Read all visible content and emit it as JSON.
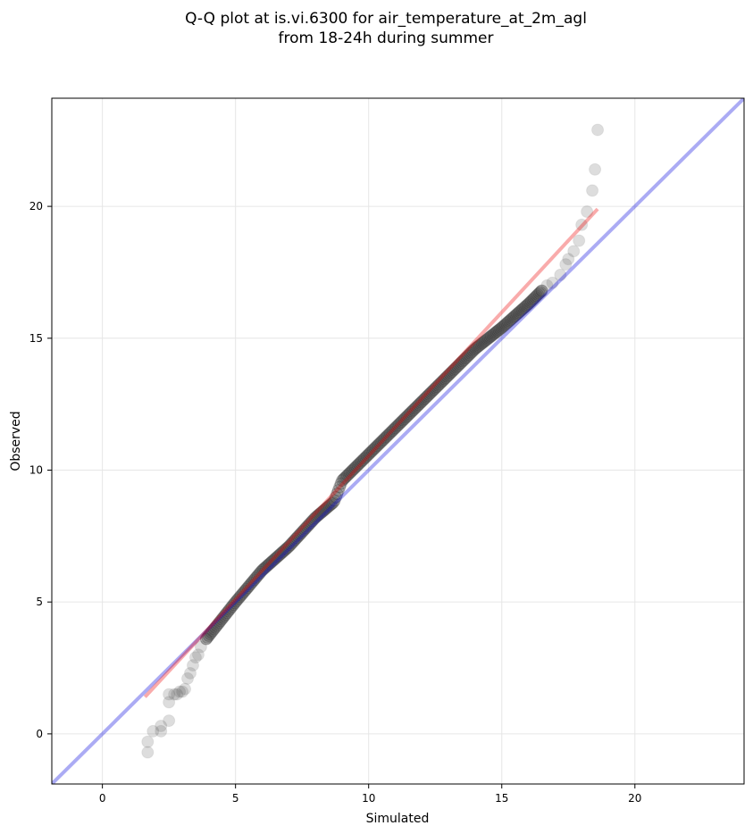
{
  "chart_data": {
    "type": "scatter",
    "title_line1": "Q-Q plot at is.vi.6300 for air_temperature_at_2m_agl",
    "title_line2": "from 18-24h during summer",
    "xlabel": "Simulated",
    "ylabel": "Observed",
    "xlim": [
      -1.9,
      24.1
    ],
    "ylim": [
      -1.9,
      24.1
    ],
    "xticks": [
      0,
      5,
      10,
      15,
      20
    ],
    "yticks": [
      0,
      5,
      10,
      15,
      20
    ],
    "grid": true,
    "identity_line": {
      "color": "#0000dd",
      "opacity": 0.33
    },
    "fit_line": {
      "color": "#ee0000",
      "opacity": 0.33,
      "x": [
        1.6,
        18.6
      ],
      "y": [
        1.4,
        19.9
      ]
    },
    "point_color": "#444444",
    "tails": {
      "x": [
        1.7,
        1.7,
        1.9,
        2.2,
        2.2,
        2.5,
        2.5,
        2.5,
        2.7,
        2.8,
        2.9,
        3.0,
        3.1,
        3.2,
        3.3,
        3.4,
        3.5,
        3.6,
        3.7,
        3.9,
        16.5,
        16.7,
        16.9,
        17.2,
        17.4,
        17.5,
        17.7,
        17.9,
        18.0,
        18.2,
        18.4,
        18.5,
        18.6
      ],
      "y": [
        -0.7,
        -0.3,
        0.1,
        0.1,
        0.3,
        0.5,
        1.2,
        1.5,
        1.5,
        1.5,
        1.6,
        1.6,
        1.7,
        2.1,
        2.3,
        2.6,
        2.9,
        3.0,
        3.3,
        3.6,
        16.8,
        17.0,
        17.1,
        17.4,
        17.8,
        18.0,
        18.3,
        18.7,
        19.3,
        19.8,
        20.6,
        21.4,
        22.9
      ]
    },
    "core": {
      "x_range": [
        3.9,
        16.5
      ],
      "y_range": [
        3.6,
        16.8
      ],
      "shape_x": [
        3.9,
        5.0,
        6.0,
        7.0,
        8.0,
        8.7,
        9.0,
        10.0,
        11.0,
        12.0,
        13.0,
        14.0,
        15.0,
        16.0,
        16.5
      ],
      "shape_y": [
        3.6,
        5.0,
        6.2,
        7.1,
        8.2,
        8.8,
        9.6,
        10.6,
        11.6,
        12.6,
        13.6,
        14.6,
        15.4,
        16.3,
        16.8
      ]
    }
  }
}
